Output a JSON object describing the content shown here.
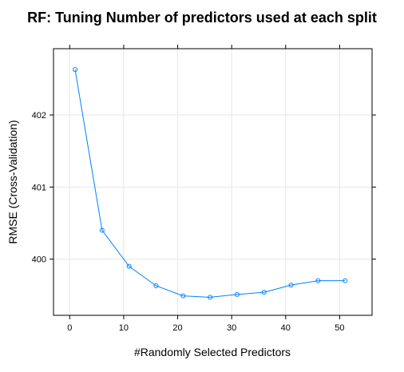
{
  "chart_data": {
    "type": "line",
    "title": "RF: Tuning Number of predictors used at each split",
    "xlabel": "#Randomly Selected Predictors",
    "ylabel": "RMSE (Cross-Validation)",
    "x": [
      1,
      6,
      11,
      16,
      21,
      26,
      31,
      36,
      41,
      46,
      51
    ],
    "series": [
      {
        "values": [
          402.63,
          400.4,
          399.9,
          399.63,
          399.49,
          399.47,
          399.51,
          399.54,
          399.64,
          399.7,
          399.7
        ]
      }
    ],
    "xlim": [
      -3,
      56
    ],
    "ylim": [
      399.22,
      402.92
    ],
    "x_ticks": [
      0,
      10,
      20,
      30,
      40,
      50
    ],
    "y_ticks": [
      400,
      401,
      402
    ],
    "x_tick_labels": [
      "0",
      "10",
      "20",
      "30",
      "40",
      "50"
    ],
    "y_tick_labels": [
      "400",
      "401",
      "402"
    ],
    "grid": true,
    "colors": {
      "series": "#0080ff",
      "grid": "#e6e6e6",
      "frame": "#000000"
    }
  }
}
